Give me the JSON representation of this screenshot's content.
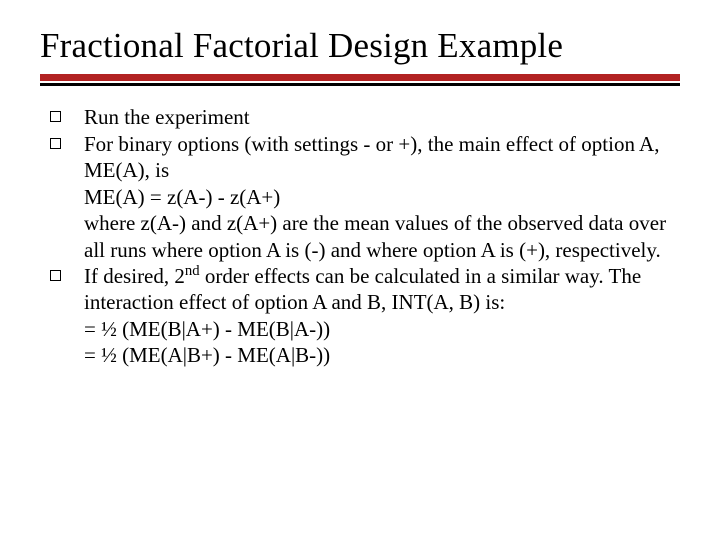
{
  "slide": {
    "title": "Fractional Factorial Design Example",
    "rule": {
      "thick_color": "#b22222",
      "thin_color": "#000000"
    },
    "bullets": [
      {
        "text": "Run the experiment"
      },
      {
        "text": "For binary options (with settings - or +), the main effect of option A, ME(A), is\nME(A) = z(A-) - z(A+)\nwhere z(A-) and z(A+) are the mean values of the observed data over all runs where option A is (-) and where option A is (+), respectively."
      },
      {
        "text_pre": "If desired, 2",
        "sup": "nd",
        "text_post": " order effects can be calculated in a similar way. The interaction effect of option A and B, INT(A, B) is:\n= ½ (ME(B|A+) - ME(B|A-))\n= ½ (ME(A|B+) - ME(A|B-))"
      }
    ]
  }
}
